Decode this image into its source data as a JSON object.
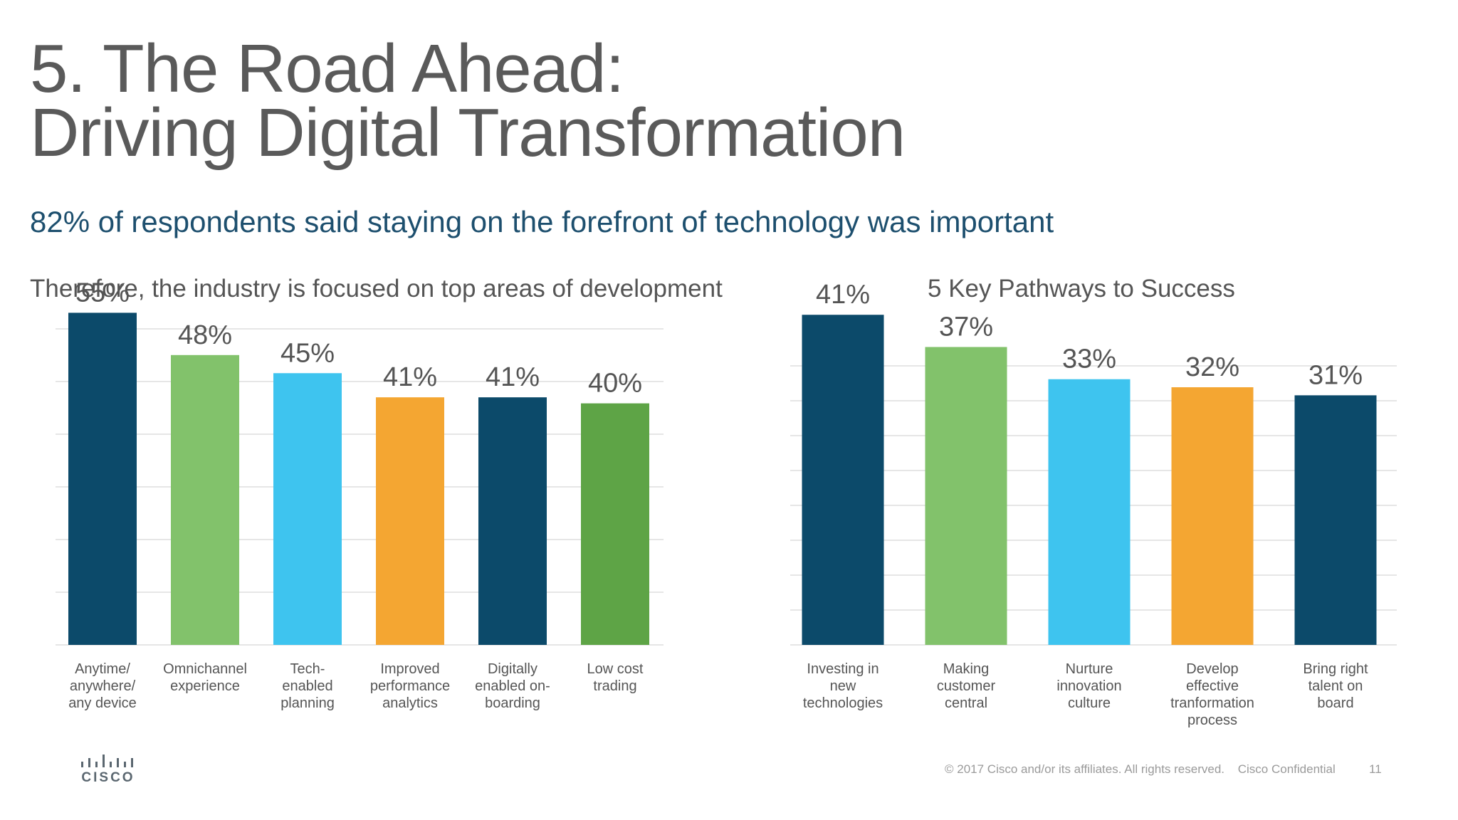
{
  "slide": {
    "title_line1": "5. The Road Ahead:",
    "title_line2": "Driving Digital Transformation",
    "subtitle": "82% of respondents said staying on the forefront of technology was important",
    "footer_copyright": "© 2017  Cisco and/or its affiliates. All rights reserved.",
    "footer_confidential": "Cisco Confidential",
    "page_number": "11",
    "logo_text": "CISCO"
  },
  "chart_data": [
    {
      "type": "bar",
      "title": "Therefore, the industry is focused on top areas of development",
      "categories": [
        [
          "Anytime/",
          "anywhere/",
          "any device"
        ],
        [
          "Omnichannel",
          "experience"
        ],
        [
          "Tech-",
          "enabled",
          "planning"
        ],
        [
          "Improved",
          "performance",
          "analytics"
        ],
        [
          "Digitally",
          "enabled on-",
          "boarding"
        ],
        [
          "Low cost",
          "trading"
        ]
      ],
      "values": [
        55,
        48,
        45,
        41,
        41,
        40
      ],
      "labels": [
        "55%",
        "48%",
        "45%",
        "41%",
        "41%",
        "40%"
      ],
      "colors": [
        "#0c4a6a",
        "#82c26b",
        "#3ec4ef",
        "#f4a632",
        "#0c4a6a",
        "#5ea446"
      ],
      "ylim": [
        0,
        60
      ],
      "grid": true
    },
    {
      "type": "bar",
      "title": "5 Key Pathways to Success",
      "categories": [
        [
          "Investing in",
          "new",
          "technologies"
        ],
        [
          "Making",
          "customer",
          "central"
        ],
        [
          "Nurture",
          "innovation",
          "culture"
        ],
        [
          "Develop",
          "effective",
          "tranformation",
          "process"
        ],
        [
          "Bring right",
          "talent on",
          "board"
        ]
      ],
      "values": [
        41,
        37,
        33,
        32,
        31
      ],
      "labels": [
        "41%",
        "37%",
        "33%",
        "32%",
        "31%"
      ],
      "colors": [
        "#0c4a6a",
        "#82c26b",
        "#3ec4ef",
        "#f4a632",
        "#0c4a6a"
      ],
      "ylim": [
        0,
        45
      ],
      "grid": true
    }
  ]
}
